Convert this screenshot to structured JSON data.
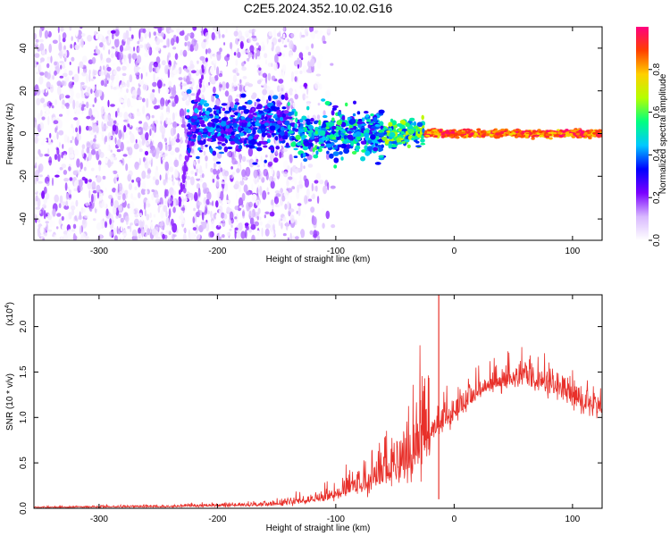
{
  "title": "C2E5.2024.352.10.02.G16",
  "chart_data": [
    {
      "type": "heatmap",
      "xlabel": "Height of straight line (km)",
      "ylabel": "Frequency (Hz)",
      "xlim": [
        -355,
        125
      ],
      "ylim": [
        -50,
        50
      ],
      "xticks": [
        -300,
        -200,
        -100,
        0,
        100
      ],
      "yticks": [
        -40,
        -20,
        0,
        20,
        40
      ],
      "colorbar": {
        "label": "Normalized spectral amplitude",
        "range": [
          0,
          1
        ],
        "ticks": [
          "0.0",
          "0.2",
          "0.4",
          "0.6",
          "0.8"
        ],
        "colors": [
          "#ffffff",
          "#d8b8ff",
          "#7a00ff",
          "#0000ff",
          "#00c8ff",
          "#00ff80",
          "#b4ff00",
          "#ffd000",
          "#ff4000",
          "#ff0080"
        ]
      },
      "features": {
        "noise_region_x": [
          -355,
          -140
        ],
        "signal_line_freq": 0,
        "signal_strong_from_x": -20
      }
    },
    {
      "type": "line",
      "xlabel": "Height of straight line (km)",
      "ylabel": "SNR (10 * v/v)",
      "multiplier_label": "(x10",
      "multiplier_exp": "4",
      "multiplier_close": ")",
      "xlim": [
        -355,
        125
      ],
      "ylim": [
        0,
        2.35
      ],
      "xticks": [
        -300,
        -200,
        -100,
        0,
        100
      ],
      "yticks": [
        "0.0",
        "0.5",
        "1.0",
        "1.5",
        "2.0"
      ],
      "ytick_values": [
        0,
        0.5,
        1.0,
        1.5,
        2.0
      ],
      "color": "#e8302a",
      "series": [
        {
          "x": [
            -355,
            -300,
            -250,
            -200,
            -160,
            -140,
            -120,
            -100,
            -80,
            -60,
            -50,
            -40,
            -30,
            -20,
            -15,
            -10,
            0,
            10,
            20,
            30,
            40,
            50,
            60,
            70,
            80,
            90,
            100,
            110,
            125
          ],
          "values": [
            0.01,
            0.015,
            0.02,
            0.03,
            0.04,
            0.06,
            0.1,
            0.15,
            0.25,
            0.35,
            0.45,
            0.55,
            0.7,
            0.85,
            0.9,
            0.95,
            1.05,
            1.15,
            1.3,
            1.35,
            1.38,
            1.42,
            1.44,
            1.4,
            1.35,
            1.3,
            1.22,
            1.15,
            1.1
          ]
        }
      ],
      "spike": {
        "x": -13,
        "y": 2.35
      }
    }
  ]
}
